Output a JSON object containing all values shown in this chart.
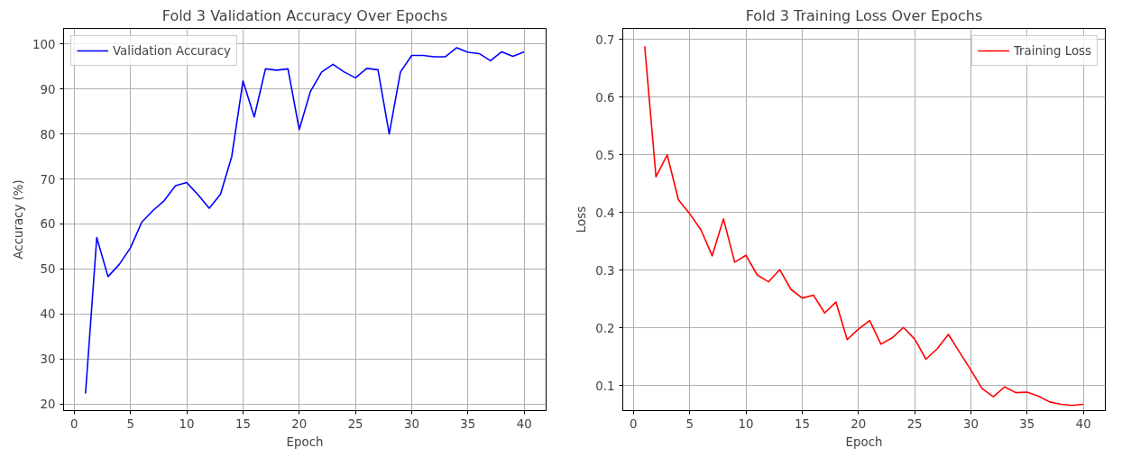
{
  "chart_data": [
    {
      "type": "line",
      "title": "Fold 3 Validation Accuracy Over Epochs",
      "xlabel": "Epoch",
      "ylabel": "Accuracy (%)",
      "x": [
        1,
        2,
        3,
        4,
        5,
        6,
        7,
        8,
        9,
        10,
        11,
        12,
        13,
        14,
        15,
        16,
        17,
        18,
        19,
        20,
        21,
        22,
        23,
        24,
        25,
        26,
        27,
        28,
        29,
        30,
        31,
        32,
        33,
        34,
        35,
        36,
        37,
        38,
        39,
        40
      ],
      "series": [
        {
          "name": "Validation Accuracy",
          "color": "#0000ff",
          "values": [
            22.3,
            57,
            48.3,
            51,
            54.7,
            60.4,
            63,
            65.2,
            68.5,
            69.2,
            66.5,
            63.5,
            66.6,
            75,
            91.8,
            83.8,
            94.5,
            94.2,
            94.5,
            81,
            89.5,
            93.8,
            95.5,
            93.8,
            92.5,
            94.6,
            94.3,
            80,
            93.8,
            97.5,
            97.5,
            97.2,
            97.2,
            99.2,
            98.2,
            97.9,
            96.3,
            98.3,
            97.3,
            98.3
          ]
        }
      ],
      "xlim": [
        -0.95,
        41.95
      ],
      "xticks": [
        0,
        5,
        10,
        15,
        20,
        25,
        30,
        35,
        40
      ],
      "ylim": [
        18.5,
        103.5
      ],
      "yticks": [
        20,
        30,
        40,
        50,
        60,
        70,
        80,
        90,
        100
      ],
      "grid": true,
      "legend": "top left",
      "marker": "none",
      "line_style": "solid"
    },
    {
      "type": "line",
      "title": "Fold 3 Training Loss Over Epochs",
      "xlabel": "Epoch",
      "ylabel": "Loss",
      "x": [
        1,
        2,
        3,
        4,
        5,
        6,
        7,
        8,
        9,
        10,
        11,
        12,
        13,
        14,
        15,
        16,
        17,
        18,
        19,
        20,
        21,
        22,
        23,
        24,
        25,
        26,
        27,
        28,
        29,
        30,
        31,
        32,
        33,
        34,
        35,
        36,
        37,
        38,
        39,
        40
      ],
      "series": [
        {
          "name": "Training Loss",
          "color": "#ff0000",
          "values": [
            0.688,
            0.462,
            0.5,
            0.422,
            0.398,
            0.37,
            0.325,
            0.389,
            0.314,
            0.326,
            0.292,
            0.28,
            0.301,
            0.267,
            0.252,
            0.257,
            0.226,
            0.245,
            0.18,
            0.198,
            0.213,
            0.172,
            0.183,
            0.201,
            0.181,
            0.146,
            0.164,
            0.189,
            0.158,
            0.127,
            0.095,
            0.081,
            0.098,
            0.088,
            0.089,
            0.082,
            0.072,
            0.068,
            0.066,
            0.068
          ]
        }
      ],
      "xlim": [
        -0.95,
        41.95
      ],
      "xticks": [
        0,
        5,
        10,
        15,
        20,
        25,
        30,
        35,
        40
      ],
      "ylim": [
        0.057,
        0.719
      ],
      "yticks": [
        0.1,
        0.2,
        0.3,
        0.4,
        0.5,
        0.6,
        0.7
      ],
      "grid": true,
      "legend": "top right",
      "marker": "none",
      "line_style": "solid"
    }
  ]
}
